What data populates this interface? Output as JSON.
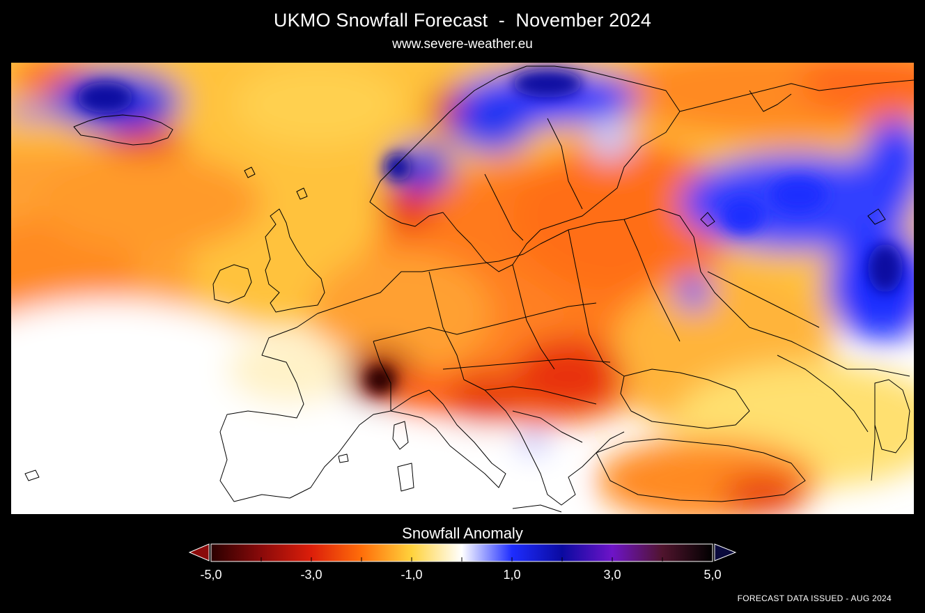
{
  "header": {
    "title": "UKMO Snowfall Forecast  -  November 2024",
    "subtitle": "www.severe-weather.eu"
  },
  "legend": {
    "title": "Snowfall Anomaly",
    "min": -5,
    "max": 5,
    "ticks": [
      "-5,0",
      "-3,0",
      "-1,0",
      "1,0",
      "3,0",
      "5,0"
    ],
    "tick_values": [
      -5,
      -3,
      -1,
      1,
      3,
      5
    ],
    "colors": {
      "stop_-5": "#2a0000",
      "stop_-4": "#8a0a0a",
      "stop_-3": "#dc1e0a",
      "stop_-2": "#ff6e0a",
      "stop_-1": "#ffd23c",
      "stop_0": "#ffffff",
      "stop_1": "#1e2dff",
      "stop_2": "#0a0aa0",
      "stop_3": "#6e14c8",
      "stop_4": "#50142d",
      "stop_5": "#000000"
    }
  },
  "footer": {
    "issued": "FORECAST DATA ISSUED - AUG 2024"
  }
}
